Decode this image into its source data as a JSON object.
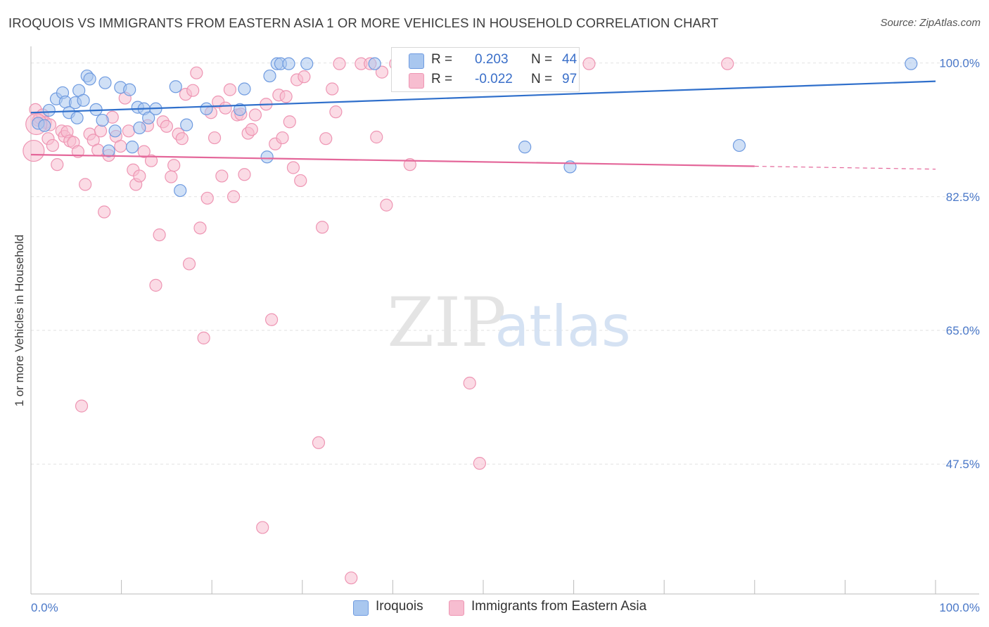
{
  "title": "IROQUOIS VS IMMIGRANTS FROM EASTERN ASIA 1 OR MORE VEHICLES IN HOUSEHOLD CORRELATION CHART",
  "source": "Source: ZipAtlas.com",
  "watermark": {
    "zip": "ZIP",
    "atlas": "atlas"
  },
  "colors": {
    "blue_fill": "#a9c7ef",
    "blue_stroke": "#6f9be0",
    "blue_line": "#2f6fcb",
    "pink_fill": "#f7bdd0",
    "pink_stroke": "#ee95b3",
    "pink_line": "#e4679a",
    "tick_text": "#4a78c8",
    "grid": "#e2e2e2"
  },
  "legend": {
    "rows": [
      {
        "r_label": "R =",
        "r_value": "0.203",
        "n_label": "N =",
        "n_value": "44"
      },
      {
        "r_label": "R =",
        "r_value": "-0.022",
        "n_label": "N =",
        "n_value": "97"
      }
    ],
    "bottom": [
      "Iroquois",
      "Immigrants from Eastern Asia"
    ]
  },
  "chart_data": {
    "type": "scatter",
    "title": "IROQUOIS VS IMMIGRANTS FROM EASTERN ASIA 1 OR MORE VEHICLES IN HOUSEHOLD CORRELATION CHART",
    "xlabel": "",
    "ylabel": "1 or more Vehicles in Household",
    "xlim": [
      0,
      100
    ],
    "ylim": [
      30.5,
      101.8
    ],
    "x_tick_labels": [
      "0.0%",
      "100.0%"
    ],
    "y_ticks": [
      {
        "value": 100.0,
        "label": "100.0%"
      },
      {
        "value": 82.5,
        "label": "82.5%"
      },
      {
        "value": 65.0,
        "label": "65.0%"
      },
      {
        "value": 47.5,
        "label": "47.5%"
      }
    ],
    "grid": true,
    "legend_position": "top-center",
    "series": [
      {
        "name": "Iroquois",
        "color": "#a9c7ef",
        "R": 0.203,
        "N": 44,
        "trend": {
          "x": [
            0,
            100
          ],
          "y": [
            93.5,
            97.6
          ],
          "dashed_from": null
        },
        "points": [
          [
            0.8,
            92.1
          ],
          [
            1.5,
            91.8
          ],
          [
            2.0,
            93.8
          ],
          [
            2.8,
            95.3
          ],
          [
            3.5,
            96.1
          ],
          [
            3.8,
            94.9
          ],
          [
            4.2,
            93.5
          ],
          [
            4.9,
            94.8
          ],
          [
            5.1,
            92.8
          ],
          [
            5.3,
            96.4
          ],
          [
            5.8,
            95.1
          ],
          [
            6.2,
            98.3
          ],
          [
            6.5,
            97.9
          ],
          [
            7.2,
            93.9
          ],
          [
            7.9,
            92.5
          ],
          [
            8.2,
            97.4
          ],
          [
            8.6,
            88.5
          ],
          [
            9.3,
            91.1
          ],
          [
            9.9,
            96.8
          ],
          [
            10.9,
            96.5
          ],
          [
            11.2,
            89.0
          ],
          [
            11.8,
            94.2
          ],
          [
            12.0,
            91.5
          ],
          [
            12.5,
            94.0
          ],
          [
            13.0,
            92.8
          ],
          [
            13.8,
            94.0
          ],
          [
            16.0,
            96.9
          ],
          [
            16.5,
            83.3
          ],
          [
            17.2,
            91.9
          ],
          [
            19.4,
            94.0
          ],
          [
            23.1,
            93.9
          ],
          [
            23.6,
            96.6
          ],
          [
            26.1,
            87.7
          ],
          [
            26.4,
            98.3
          ],
          [
            27.2,
            99.9
          ],
          [
            27.6,
            99.9
          ],
          [
            28.5,
            99.9
          ],
          [
            30.5,
            99.9
          ],
          [
            38.0,
            99.9
          ],
          [
            52.1,
            99.9
          ],
          [
            54.6,
            89.0
          ],
          [
            59.6,
            86.4
          ],
          [
            78.3,
            89.2
          ],
          [
            97.3,
            99.9
          ]
        ]
      },
      {
        "name": "Immigrants from Eastern Asia",
        "color": "#f7bdd0",
        "R": -0.022,
        "N": 97,
        "trend": {
          "x": [
            0,
            100
          ],
          "y": [
            88.0,
            86.1
          ],
          "dashed_from": 80
        },
        "points": [
          [
            0.5,
            93.9
          ],
          [
            0.8,
            92.5
          ],
          [
            1.0,
            92.8
          ],
          [
            1.3,
            93.2
          ],
          [
            1.6,
            92.2
          ],
          [
            1.9,
            90.1
          ],
          [
            2.1,
            91.9
          ],
          [
            2.4,
            89.2
          ],
          [
            2.9,
            86.7
          ],
          [
            3.4,
            91.1
          ],
          [
            3.7,
            90.4
          ],
          [
            4.0,
            91.0
          ],
          [
            4.3,
            89.8
          ],
          [
            4.7,
            89.6
          ],
          [
            5.2,
            88.4
          ],
          [
            5.6,
            55.1
          ],
          [
            6.0,
            84.1
          ],
          [
            6.5,
            90.7
          ],
          [
            6.9,
            89.9
          ],
          [
            7.4,
            88.6
          ],
          [
            7.7,
            91.1
          ],
          [
            8.1,
            80.5
          ],
          [
            8.6,
            87.9
          ],
          [
            9.0,
            92.9
          ],
          [
            9.4,
            90.4
          ],
          [
            9.9,
            89.1
          ],
          [
            10.4,
            95.4
          ],
          [
            10.8,
            91.1
          ],
          [
            11.3,
            86.0
          ],
          [
            11.6,
            84.1
          ],
          [
            12.0,
            85.2
          ],
          [
            12.5,
            88.4
          ],
          [
            12.9,
            91.8
          ],
          [
            13.3,
            87.2
          ],
          [
            13.8,
            70.9
          ],
          [
            14.2,
            77.5
          ],
          [
            14.6,
            92.3
          ],
          [
            15.0,
            91.7
          ],
          [
            15.5,
            85.1
          ],
          [
            15.8,
            86.6
          ],
          [
            16.3,
            90.7
          ],
          [
            16.7,
            90.1
          ],
          [
            17.1,
            95.9
          ],
          [
            17.5,
            73.7
          ],
          [
            17.9,
            96.4
          ],
          [
            18.3,
            98.7
          ],
          [
            18.7,
            78.4
          ],
          [
            19.1,
            64.0
          ],
          [
            19.5,
            82.3
          ],
          [
            19.9,
            93.5
          ],
          [
            20.3,
            90.2
          ],
          [
            20.7,
            94.9
          ],
          [
            21.1,
            85.2
          ],
          [
            21.5,
            94.1
          ],
          [
            22.0,
            96.5
          ],
          [
            22.4,
            82.5
          ],
          [
            22.8,
            93.2
          ],
          [
            23.2,
            93.3
          ],
          [
            23.6,
            85.4
          ],
          [
            24.0,
            90.8
          ],
          [
            24.4,
            91.3
          ],
          [
            24.8,
            93.2
          ],
          [
            25.6,
            39.2
          ],
          [
            26.0,
            94.6
          ],
          [
            26.6,
            66.4
          ],
          [
            27.0,
            89.4
          ],
          [
            27.4,
            95.8
          ],
          [
            27.8,
            90.2
          ],
          [
            28.2,
            95.6
          ],
          [
            28.6,
            92.3
          ],
          [
            29.0,
            86.3
          ],
          [
            29.4,
            97.8
          ],
          [
            29.8,
            84.6
          ],
          [
            30.2,
            98.2
          ],
          [
            31.8,
            50.3
          ],
          [
            32.2,
            78.5
          ],
          [
            32.6,
            90.1
          ],
          [
            33.3,
            96.6
          ],
          [
            33.7,
            93.6
          ],
          [
            34.1,
            99.9
          ],
          [
            35.4,
            32.6
          ],
          [
            36.5,
            99.9
          ],
          [
            37.5,
            99.9
          ],
          [
            38.2,
            90.3
          ],
          [
            38.8,
            98.8
          ],
          [
            39.3,
            81.4
          ],
          [
            40.3,
            99.9
          ],
          [
            41.9,
            86.7
          ],
          [
            42.9,
            99.9
          ],
          [
            46.0,
            99.9
          ],
          [
            48.5,
            58.1
          ],
          [
            49.6,
            47.6
          ],
          [
            52.3,
            99.9
          ],
          [
            61.7,
            99.9
          ],
          [
            77.0,
            99.9
          ],
          [
            0.3,
            88.5
          ],
          [
            0.6,
            92.0
          ]
        ],
        "large_points": [
          [
            0.3,
            88.5
          ],
          [
            0.6,
            92.0
          ]
        ]
      }
    ]
  }
}
